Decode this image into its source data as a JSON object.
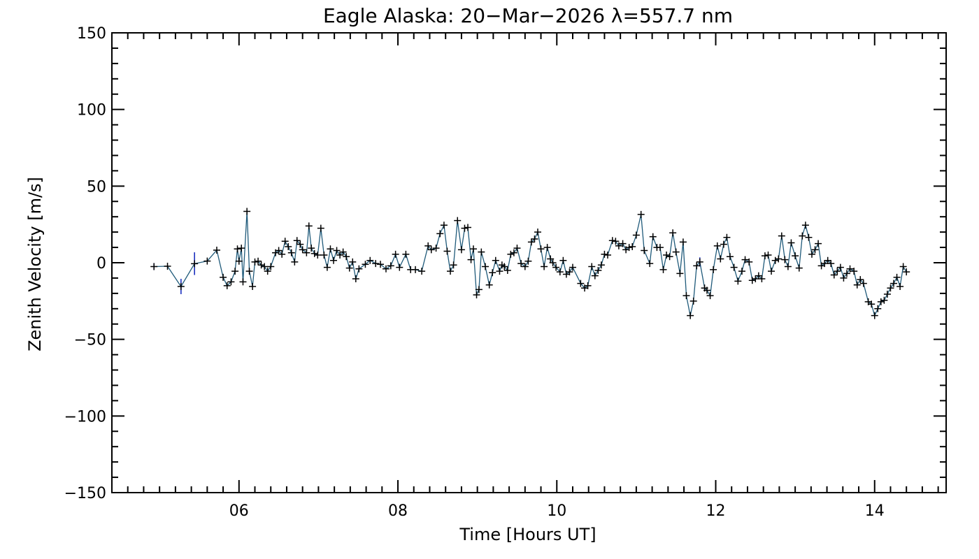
{
  "chart_data": {
    "type": "scatter",
    "title": "Eagle Alaska: 20−Mar−2026 λ=557.7 nm",
    "xlabel": "Time [Hours UT]",
    "ylabel": "Zenith Velocity [m/s]",
    "xlim": [
      4.4,
      14.9
    ],
    "ylim": [
      -150,
      150
    ],
    "x_ticks": [
      6,
      8,
      10,
      12,
      14
    ],
    "x_tick_labels": [
      "06",
      "08",
      "10",
      "12",
      "14"
    ],
    "y_ticks": [
      -150,
      -100,
      -50,
      0,
      50,
      100,
      150
    ],
    "y_tick_labels": [
      "−150",
      "−100",
      "−50",
      "0",
      "50",
      "100",
      "150"
    ],
    "line_color": "#1f5a7a",
    "marker_color": "#000000",
    "errorbar_color": "#1a2fbf",
    "series": [
      {
        "name": "Zenith velocity",
        "points": [
          [
            4.93,
            -2.5
          ],
          [
            5.1,
            -2.3
          ],
          [
            5.27,
            -15.5
          ],
          [
            5.44,
            -0.6
          ],
          [
            5.6,
            1.1
          ],
          [
            5.72,
            8.2
          ],
          [
            5.8,
            -9.5
          ],
          [
            5.85,
            -15.0
          ],
          [
            5.9,
            -12.5
          ],
          [
            5.95,
            -5.5
          ],
          [
            5.98,
            9.0
          ],
          [
            6.0,
            1.0
          ],
          [
            6.03,
            9.5
          ],
          [
            6.05,
            -12.5
          ],
          [
            6.1,
            33.5
          ],
          [
            6.13,
            -5.5
          ],
          [
            6.17,
            -15.5
          ],
          [
            6.2,
            0.5
          ],
          [
            6.24,
            1.0
          ],
          [
            6.28,
            -1.5
          ],
          [
            6.32,
            -2.5
          ],
          [
            6.36,
            -5.5
          ],
          [
            6.4,
            -2.5
          ],
          [
            6.46,
            6.5
          ],
          [
            6.5,
            8.0
          ],
          [
            6.54,
            5.5
          ],
          [
            6.58,
            14.0
          ],
          [
            6.62,
            10.5
          ],
          [
            6.66,
            6.5
          ],
          [
            6.7,
            0.5
          ],
          [
            6.73,
            14.5
          ],
          [
            6.77,
            12.0
          ],
          [
            6.8,
            8.5
          ],
          [
            6.85,
            6.5
          ],
          [
            6.88,
            24.0
          ],
          [
            6.91,
            9.5
          ],
          [
            6.95,
            6.0
          ],
          [
            6.99,
            5.0
          ],
          [
            7.03,
            22.5
          ],
          [
            7.07,
            5.0
          ],
          [
            7.11,
            -3.0
          ],
          [
            7.15,
            9.0
          ],
          [
            7.19,
            1.5
          ],
          [
            7.23,
            8.0
          ],
          [
            7.27,
            5.0
          ],
          [
            7.31,
            7.0
          ],
          [
            7.35,
            4.0
          ],
          [
            7.39,
            -3.5
          ],
          [
            7.43,
            0.5
          ],
          [
            7.47,
            -10.5
          ],
          [
            7.51,
            -4.0
          ],
          [
            7.59,
            -1.0
          ],
          [
            7.65,
            1.5
          ],
          [
            7.72,
            -0.5
          ],
          [
            7.78,
            -1.0
          ],
          [
            7.85,
            -4.0
          ],
          [
            7.91,
            -2.0
          ],
          [
            7.97,
            5.5
          ],
          [
            8.02,
            -3.0
          ],
          [
            8.1,
            5.5
          ],
          [
            8.16,
            -4.5
          ],
          [
            8.22,
            -4.5
          ],
          [
            8.3,
            -5.5
          ],
          [
            8.38,
            11.0
          ],
          [
            8.42,
            8.5
          ],
          [
            8.48,
            9.5
          ],
          [
            8.53,
            19.0
          ],
          [
            8.58,
            24.5
          ],
          [
            8.62,
            7.5
          ],
          [
            8.66,
            -5.5
          ],
          [
            8.7,
            -1.5
          ],
          [
            8.75,
            27.5
          ],
          [
            8.8,
            8.5
          ],
          [
            8.84,
            22.5
          ],
          [
            8.88,
            23.0
          ],
          [
            8.92,
            2.0
          ],
          [
            8.95,
            9.0
          ],
          [
            8.99,
            -21.0
          ],
          [
            9.02,
            -17.5
          ],
          [
            9.05,
            7.0
          ],
          [
            9.1,
            -2.5
          ],
          [
            9.15,
            -14.5
          ],
          [
            9.19,
            -6.5
          ],
          [
            9.23,
            1.5
          ],
          [
            9.28,
            -5.5
          ],
          [
            9.31,
            -1.5
          ],
          [
            9.34,
            -2.5
          ],
          [
            9.38,
            -5.0
          ],
          [
            9.42,
            5.5
          ],
          [
            9.46,
            6.5
          ],
          [
            9.5,
            9.5
          ],
          [
            9.55,
            -0.5
          ],
          [
            9.6,
            -2.5
          ],
          [
            9.64,
            1.0
          ],
          [
            9.68,
            13.5
          ],
          [
            9.72,
            15.5
          ],
          [
            9.76,
            20.0
          ],
          [
            9.8,
            9.0
          ],
          [
            9.84,
            -2.5
          ],
          [
            9.88,
            10.0
          ],
          [
            9.92,
            2.5
          ],
          [
            9.95,
            0.0
          ],
          [
            9.99,
            -3.0
          ],
          [
            10.04,
            -6.0
          ],
          [
            10.08,
            1.5
          ],
          [
            10.12,
            -7.5
          ],
          [
            10.16,
            -6.0
          ],
          [
            10.2,
            -3.0
          ],
          [
            10.3,
            -13.5
          ],
          [
            10.35,
            -16.5
          ],
          [
            10.39,
            -15.0
          ],
          [
            10.44,
            -2.5
          ],
          [
            10.48,
            -8.5
          ],
          [
            10.52,
            -5.0
          ],
          [
            10.56,
            -1.5
          ],
          [
            10.6,
            5.5
          ],
          [
            10.64,
            5.0
          ],
          [
            10.7,
            14.5
          ],
          [
            10.74,
            14.0
          ],
          [
            10.78,
            11.0
          ],
          [
            10.83,
            12.5
          ],
          [
            10.87,
            8.5
          ],
          [
            10.91,
            10.0
          ],
          [
            10.95,
            10.5
          ],
          [
            11.0,
            18.0
          ],
          [
            11.06,
            31.5
          ],
          [
            11.1,
            8.0
          ],
          [
            11.17,
            -0.5
          ],
          [
            11.21,
            17.0
          ],
          [
            11.26,
            10.0
          ],
          [
            11.3,
            10.0
          ],
          [
            11.34,
            -4.5
          ],
          [
            11.38,
            5.0
          ],
          [
            11.42,
            4.0
          ],
          [
            11.46,
            19.5
          ],
          [
            11.5,
            7.0
          ],
          [
            11.55,
            -7.0
          ],
          [
            11.59,
            13.5
          ],
          [
            11.63,
            -21.5
          ],
          [
            11.68,
            -34.5
          ],
          [
            11.72,
            -25.0
          ],
          [
            11.76,
            -2.0
          ],
          [
            11.8,
            0.5
          ],
          [
            11.86,
            -16.5
          ],
          [
            11.89,
            -18.0
          ],
          [
            11.93,
            -21.5
          ],
          [
            11.97,
            -4.5
          ],
          [
            12.02,
            11.0
          ],
          [
            12.06,
            2.5
          ],
          [
            12.1,
            12.0
          ],
          [
            12.14,
            16.5
          ],
          [
            12.18,
            4.0
          ],
          [
            12.23,
            -3.0
          ],
          [
            12.28,
            -12.0
          ],
          [
            12.33,
            -5.5
          ],
          [
            12.37,
            2.0
          ],
          [
            12.42,
            0.5
          ],
          [
            12.46,
            -11.5
          ],
          [
            12.5,
            -10.5
          ],
          [
            12.54,
            -8.5
          ],
          [
            12.58,
            -10.5
          ],
          [
            12.62,
            4.5
          ],
          [
            12.66,
            5.0
          ],
          [
            12.7,
            -5.5
          ],
          [
            12.75,
            1.5
          ],
          [
            12.79,
            2.5
          ],
          [
            12.83,
            17.5
          ],
          [
            12.87,
            2.0
          ],
          [
            12.91,
            -2.5
          ],
          [
            12.95,
            13.0
          ],
          [
            13.0,
            4.5
          ],
          [
            13.05,
            -3.5
          ],
          [
            13.09,
            17.5
          ],
          [
            13.13,
            24.5
          ],
          [
            13.17,
            16.5
          ],
          [
            13.21,
            5.5
          ],
          [
            13.25,
            8.5
          ],
          [
            13.29,
            12.5
          ],
          [
            13.33,
            -2.0
          ],
          [
            13.37,
            -0.5
          ],
          [
            13.41,
            1.5
          ],
          [
            13.45,
            -0.5
          ],
          [
            13.49,
            -8.0
          ],
          [
            13.53,
            -5.5
          ],
          [
            13.57,
            -3.0
          ],
          [
            13.61,
            -10.0
          ],
          [
            13.65,
            -7.0
          ],
          [
            13.69,
            -4.0
          ],
          [
            13.74,
            -5.5
          ],
          [
            13.78,
            -14.5
          ],
          [
            13.82,
            -11.0
          ],
          [
            13.86,
            -13.5
          ],
          [
            13.92,
            -25.5
          ],
          [
            13.96,
            -27.0
          ],
          [
            14.0,
            -34.5
          ],
          [
            14.04,
            -30.0
          ],
          [
            14.08,
            -25.5
          ],
          [
            14.12,
            -24.5
          ],
          [
            14.16,
            -20.5
          ],
          [
            14.2,
            -16.5
          ],
          [
            14.24,
            -13.5
          ],
          [
            14.28,
            -9.5
          ],
          [
            14.32,
            -15.5
          ],
          [
            14.36,
            -2.5
          ],
          [
            14.4,
            -6.0
          ]
        ],
        "errorbars": [
          {
            "x": 4.93,
            "lo": -4.8,
            "hi": -0.2
          },
          {
            "x": 5.27,
            "lo": -20.5,
            "hi": -10.5
          },
          {
            "x": 5.44,
            "lo": -8.0,
            "hi": 6.8
          },
          {
            "x": 11.8,
            "lo": -2.5,
            "hi": 3.5
          }
        ]
      }
    ]
  }
}
